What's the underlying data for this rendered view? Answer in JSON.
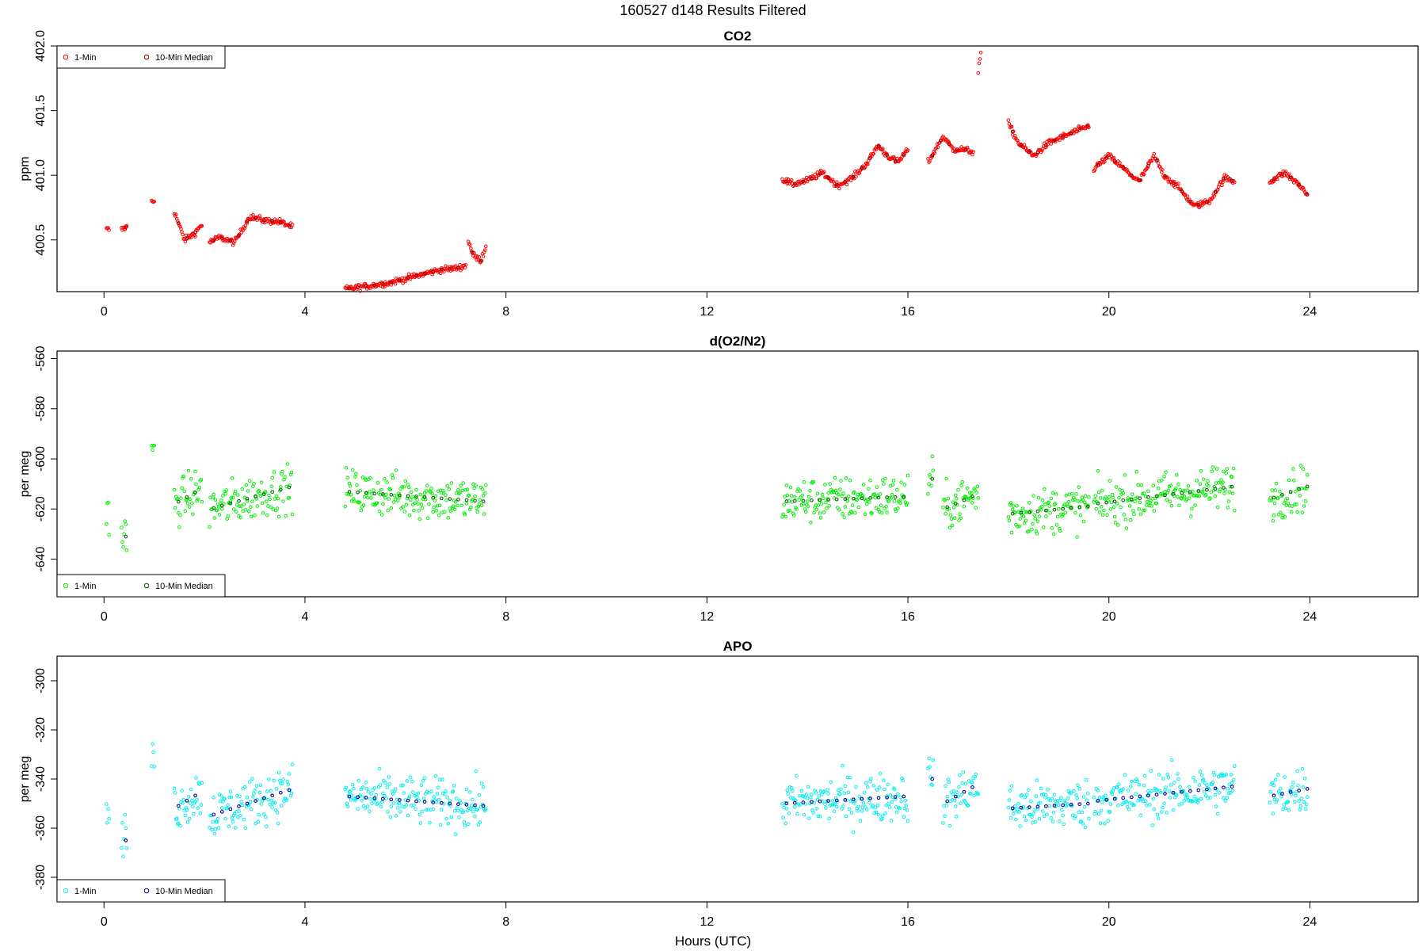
{
  "figure": {
    "title": "160527   d148   Results Filtered",
    "xlabel": "Hours (UTC)"
  },
  "legend": {
    "one_min": "1-Min",
    "median": "10-Min Median"
  },
  "chart_data": [
    {
      "type": "scatter",
      "title": "CO2",
      "ylabel": "ppm",
      "xlim": [
        0,
        24
      ],
      "ylim": [
        400.1,
        402.0
      ],
      "xticks": [
        0,
        4,
        8,
        12,
        16,
        20,
        24
      ],
      "yticks": [
        400.5,
        401.0,
        401.5,
        402.0
      ],
      "ytick_labels": [
        "400.5",
        "401.0",
        "401.5",
        "402.0"
      ],
      "legend_pos": "top-left",
      "colors": {
        "one_min": "#ff0000",
        "median": "#8b0000"
      },
      "segments": [
        {
          "x": [
            0.05,
            0.1
          ],
          "y": [
            400.58,
            400.58
          ]
        },
        {
          "x": [
            0.35,
            0.45
          ],
          "y": [
            400.58,
            400.6
          ]
        },
        {
          "x": [
            0.95,
            1.0
          ],
          "y": [
            400.8,
            400.8
          ]
        },
        {
          "x": [
            1.4,
            1.6,
            1.8,
            1.95
          ],
          "y": [
            400.72,
            400.5,
            400.55,
            400.62
          ]
        },
        {
          "x": [
            2.1,
            2.3,
            2.6,
            2.9,
            3.2,
            3.5,
            3.75
          ],
          "y": [
            400.48,
            400.52,
            400.48,
            400.68,
            400.65,
            400.64,
            400.6
          ]
        },
        {
          "x": [
            4.8,
            5.2,
            5.7,
            6.2,
            6.7,
            7.0,
            7.2
          ],
          "y": [
            400.12,
            400.14,
            400.17,
            400.22,
            400.27,
            400.28,
            400.3
          ]
        },
        {
          "x": [
            7.25,
            7.35,
            7.5,
            7.6
          ],
          "y": [
            400.5,
            400.38,
            400.34,
            400.45
          ]
        },
        {
          "x": [
            13.5,
            13.7,
            14.0,
            14.3,
            14.6,
            14.9,
            15.2,
            15.4,
            15.6,
            15.8,
            16.0
          ],
          "y": [
            400.97,
            400.93,
            400.96,
            401.02,
            400.92,
            400.98,
            401.1,
            401.23,
            401.15,
            401.1,
            401.2
          ]
        },
        {
          "x": [
            16.4,
            16.7,
            16.9,
            17.1,
            17.3
          ],
          "y": [
            401.1,
            401.3,
            401.2,
            401.2,
            401.18
          ]
        },
        {
          "x": [
            17.4,
            17.45
          ],
          "y": [
            401.8,
            401.95
          ]
        },
        {
          "x": [
            18.0,
            18.2,
            18.5,
            18.8,
            19.1,
            19.4,
            19.6
          ],
          "y": [
            401.4,
            401.25,
            401.15,
            401.25,
            401.3,
            401.35,
            401.38
          ]
        },
        {
          "x": [
            19.7,
            20.0,
            20.3,
            20.6,
            20.9,
            21.1,
            21.4,
            21.7,
            22.0,
            22.3,
            22.5
          ],
          "y": [
            401.05,
            401.15,
            401.05,
            400.95,
            401.15,
            401.0,
            400.9,
            400.76,
            400.8,
            400.98,
            400.95
          ]
        },
        {
          "x": [
            23.2,
            23.5,
            23.8,
            23.95
          ],
          "y": [
            400.95,
            401.02,
            400.92,
            400.85
          ]
        }
      ]
    },
    {
      "type": "scatter",
      "title": "d(O2/N2)",
      "ylabel": "per meg",
      "xlim": [
        0,
        24
      ],
      "ylim": [
        -655,
        -557
      ],
      "xticks": [
        0,
        4,
        8,
        12,
        16,
        20,
        24
      ],
      "yticks": [
        -640,
        -620,
        -600,
        -580,
        -560
      ],
      "ytick_labels": [
        "-640",
        "-620",
        "-600",
        "-580",
        "-560"
      ],
      "legend_pos": "bottom-left",
      "colors": {
        "one_min": "#00ee00",
        "median": "#006400"
      },
      "segments": [
        {
          "x": [
            0.05,
            0.1
          ],
          "y": [
            -621,
            -621
          ]
        },
        {
          "x": [
            0.35,
            0.45
          ],
          "y": [
            -631,
            -631
          ]
        },
        {
          "x": [
            0.95,
            1.0
          ],
          "y": [
            -597,
            -597
          ]
        },
        {
          "x": [
            1.4,
            1.95
          ],
          "y": [
            -618,
            -612
          ]
        },
        {
          "x": [
            2.1,
            3.75
          ],
          "y": [
            -620,
            -611
          ]
        },
        {
          "x": [
            4.8,
            7.6
          ],
          "y": [
            -613,
            -617
          ]
        },
        {
          "x": [
            13.5,
            16.0
          ],
          "y": [
            -617,
            -615
          ]
        },
        {
          "x": [
            16.4,
            16.5
          ],
          "y": [
            -608,
            -608
          ]
        },
        {
          "x": [
            16.7,
            17.4
          ],
          "y": [
            -620,
            -614
          ]
        },
        {
          "x": [
            18.0,
            19.6
          ],
          "y": [
            -622,
            -619
          ]
        },
        {
          "x": [
            19.7,
            22.5
          ],
          "y": [
            -618,
            -611
          ]
        },
        {
          "x": [
            23.2,
            23.95
          ],
          "y": [
            -616,
            -611
          ]
        }
      ]
    },
    {
      "type": "scatter",
      "title": "APO",
      "ylabel": "per meg",
      "xlim": [
        0,
        24
      ],
      "ylim": [
        -390,
        -290
      ],
      "xticks": [
        0,
        4,
        8,
        12,
        16,
        20,
        24
      ],
      "yticks": [
        -380,
        -360,
        -340,
        -320,
        -300
      ],
      "ytick_labels": [
        "-380",
        "-360",
        "-340",
        "-320",
        "-300"
      ],
      "legend_pos": "bottom-left",
      "colors": {
        "one_min": "#00eeee",
        "median": "#00008b"
      },
      "segments": [
        {
          "x": [
            0.05,
            0.1
          ],
          "y": [
            -355,
            -355
          ]
        },
        {
          "x": [
            0.35,
            0.45
          ],
          "y": [
            -365,
            -365
          ]
        },
        {
          "x": [
            0.95,
            1.0
          ],
          "y": [
            -330,
            -330
          ]
        },
        {
          "x": [
            1.4,
            1.95
          ],
          "y": [
            -352,
            -345
          ]
        },
        {
          "x": [
            2.1,
            3.75
          ],
          "y": [
            -355,
            -344
          ]
        },
        {
          "x": [
            4.8,
            7.6
          ],
          "y": [
            -347,
            -351
          ]
        },
        {
          "x": [
            13.5,
            16.0
          ],
          "y": [
            -350,
            -347
          ]
        },
        {
          "x": [
            16.4,
            16.5
          ],
          "y": [
            -340,
            -340
          ]
        },
        {
          "x": [
            16.7,
            17.4
          ],
          "y": [
            -350,
            -342
          ]
        },
        {
          "x": [
            18.0,
            19.6
          ],
          "y": [
            -352,
            -350
          ]
        },
        {
          "x": [
            19.7,
            22.5
          ],
          "y": [
            -349,
            -343
          ]
        },
        {
          "x": [
            23.2,
            23.95
          ],
          "y": [
            -347,
            -344
          ]
        }
      ]
    }
  ]
}
